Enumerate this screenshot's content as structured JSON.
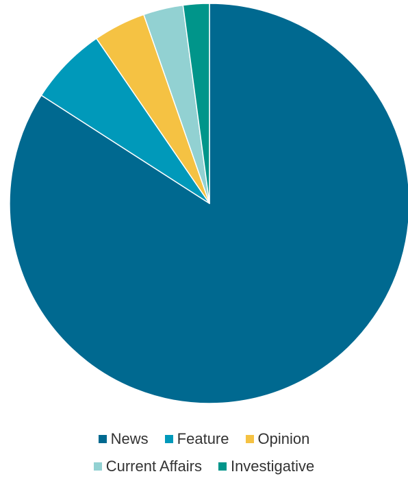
{
  "chart_data": {
    "type": "pie",
    "title": "",
    "categories": [
      "News",
      "Feature",
      "Opinion",
      "Current Affairs",
      "Investigative"
    ],
    "values": [
      83.5,
      6.3,
      4.2,
      3.2,
      2.1
    ],
    "colors": [
      "#006990",
      "#0099ba",
      "#f5c243",
      "#92d1d2",
      "#00958a"
    ],
    "legend_position": "bottom",
    "start_angle": "top, clockwise"
  },
  "legend": {
    "rows": [
      [
        {
          "label": "News",
          "color": "#006990"
        },
        {
          "label": "Feature",
          "color": "#0099ba"
        },
        {
          "label": "Opinion",
          "color": "#f5c243"
        }
      ],
      [
        {
          "label": "Current Affairs",
          "color": "#92d1d2"
        },
        {
          "label": "Investigative",
          "color": "#00958a"
        }
      ]
    ]
  }
}
